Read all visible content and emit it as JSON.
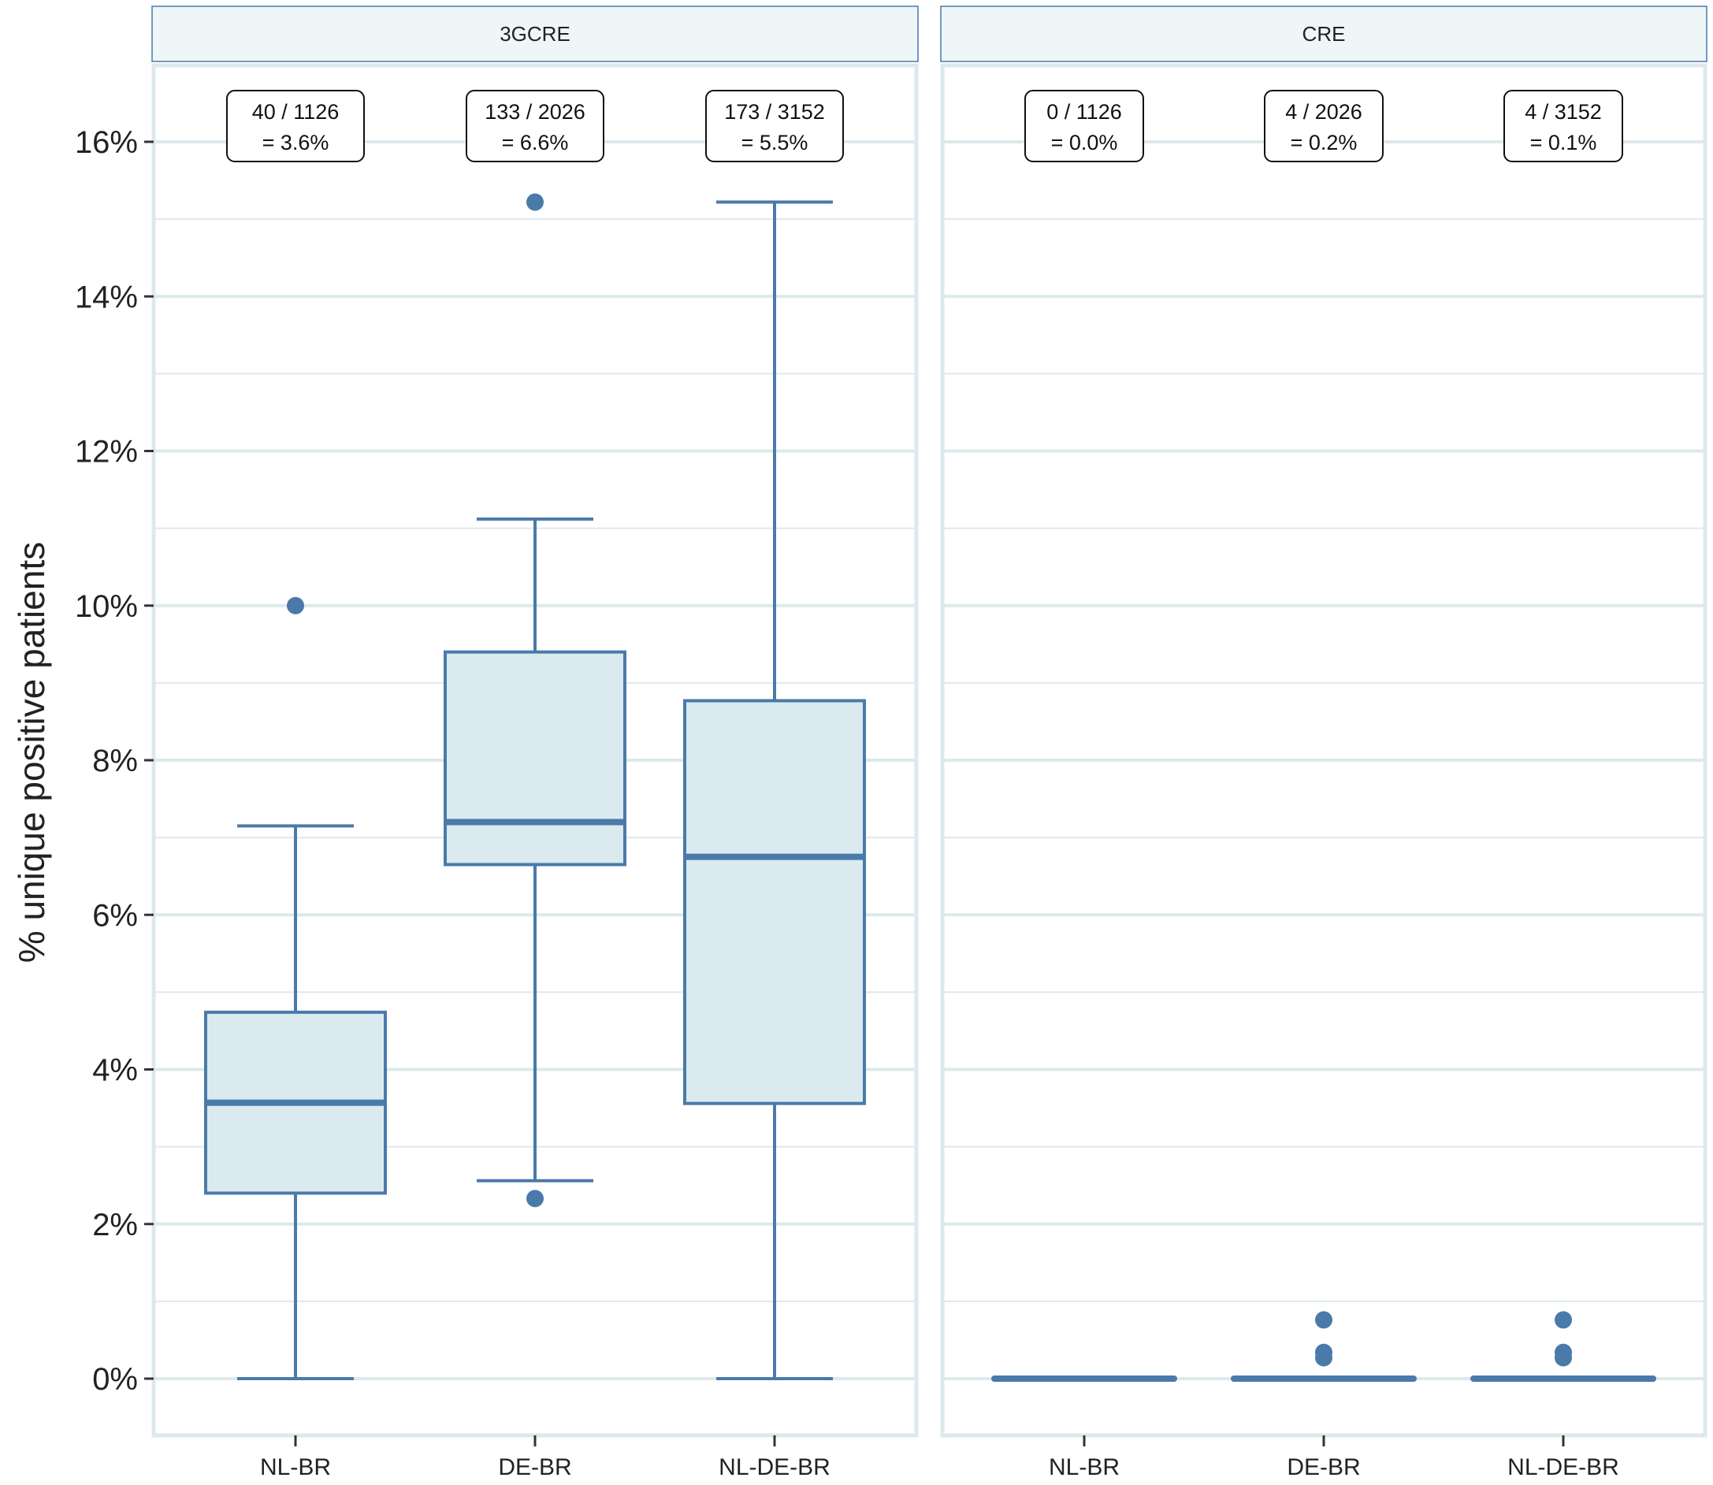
{
  "chart_data": {
    "type": "boxplot",
    "ylabel": "% unique positive patients",
    "xlabel": "",
    "ylim": [
      -0.7,
      17.3
    ],
    "y_ticks": [
      0,
      2,
      4,
      6,
      8,
      10,
      12,
      14,
      16
    ],
    "y_tick_labels": [
      "0%",
      "2%",
      "4%",
      "6%",
      "8%",
      "10%",
      "12%",
      "14%",
      "16%"
    ],
    "categories": [
      "NL-BR",
      "DE-BR",
      "NL-DE-BR"
    ],
    "grid": true,
    "colors": {
      "box_fill": "#dbeaee",
      "box_stroke": "#4a7aaa",
      "grid": "#dde9ec",
      "strip_fill": "#eef6f8",
      "strip_stroke": "#4a7aaa",
      "panel_border": "#dde9ec"
    },
    "panels": [
      {
        "strip": "3GCRE",
        "boxes": [
          {
            "category": "NL-BR",
            "q1": 2.4,
            "median": 3.57,
            "q3": 4.74,
            "whisker_low": 0,
            "whisker_high": 7.15,
            "outliers": [
              10.0
            ],
            "annotation": [
              "40 /  1126",
              " = 3.6%"
            ]
          },
          {
            "category": "DE-BR",
            "q1": 6.65,
            "median": 7.2,
            "q3": 9.4,
            "whisker_low": 2.56,
            "whisker_high": 11.12,
            "outliers": [
              15.22,
              2.33
            ],
            "annotation": [
              "133 / 2026",
              " = 6.6%"
            ]
          },
          {
            "category": "NL-DE-BR",
            "q1": 3.56,
            "median": 6.75,
            "q3": 8.77,
            "whisker_low": 0,
            "whisker_high": 15.22,
            "outliers": [],
            "annotation": [
              "173 / 3152",
              " = 5.5%"
            ]
          }
        ]
      },
      {
        "strip": "CRE",
        "boxes": [
          {
            "category": "NL-BR",
            "q1": 0,
            "median": 0,
            "q3": 0,
            "whisker_low": 0,
            "whisker_high": 0,
            "outliers": [],
            "annotation": [
              "0 / 1126",
              " = 0.0%"
            ]
          },
          {
            "category": "DE-BR",
            "q1": 0,
            "median": 0,
            "q3": 0,
            "whisker_low": 0,
            "whisker_high": 0,
            "outliers": [
              0.76,
              0.34,
              0.27
            ],
            "annotation": [
              "4 / 2026",
              " = 0.2%"
            ]
          },
          {
            "category": "NL-DE-BR",
            "q1": 0,
            "median": 0,
            "q3": 0,
            "whisker_low": 0,
            "whisker_high": 0,
            "outliers": [
              0.76,
              0.34,
              0.27
            ],
            "annotation": [
              "4 / 3152",
              " = 0.1%"
            ]
          }
        ]
      }
    ]
  }
}
